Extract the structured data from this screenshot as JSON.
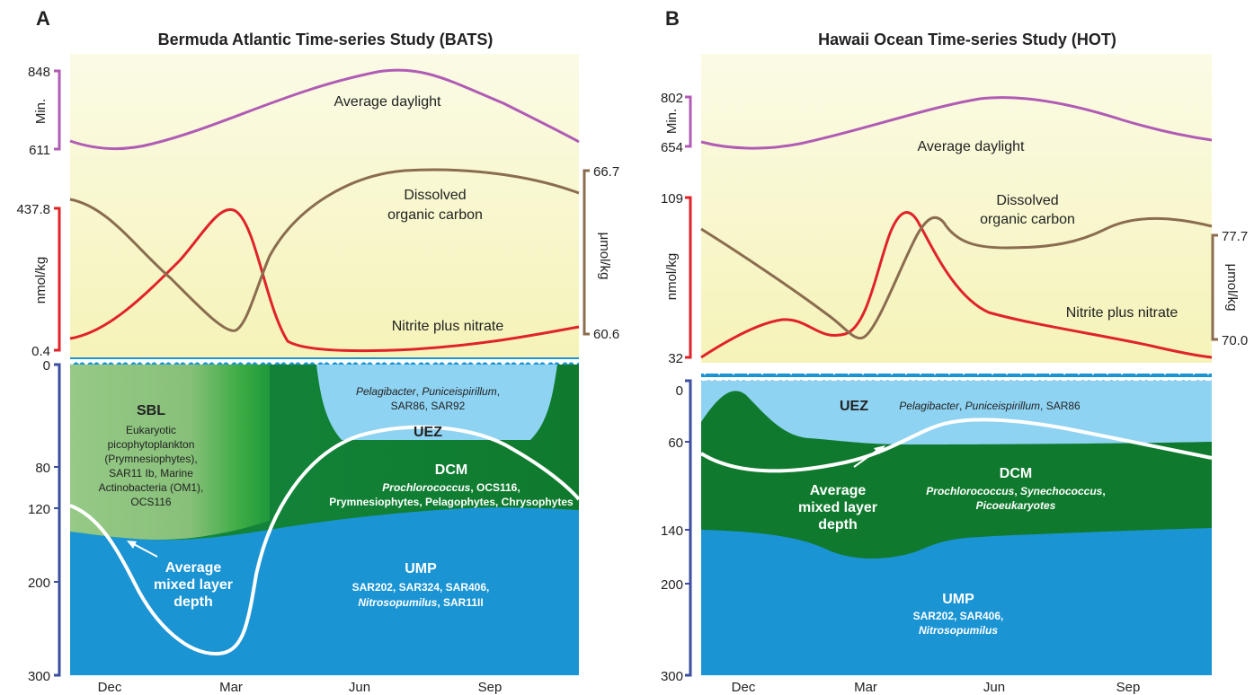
{
  "panels": [
    {
      "letter": "A",
      "title": "Bermuda Atlantic Time-series Study (BATS)",
      "daylight": {
        "label": "Average daylight",
        "axis": "Min.",
        "max": "848",
        "min": "611"
      },
      "nitrate": {
        "label": "Nitrite plus nitrate",
        "axis": "nmol/kg",
        "max": "437.8",
        "min": "0.4"
      },
      "doc": {
        "label1": "Dissolved",
        "label2": "organic carbon",
        "axis": "μmol/kg",
        "max": "66.7",
        "min": "60.6"
      },
      "depth_ticks": [
        "0",
        "80",
        "120",
        "200",
        "300"
      ],
      "months": [
        "Dec",
        "Mar",
        "Jun",
        "Sep"
      ],
      "sbl": {
        "title": "SBL",
        "lines": [
          "Eukaryotic",
          "picophytoplankton",
          "(Prymnesiophytes),",
          "SAR11 Ib, Marine",
          "Actinobacteria (OM1),",
          "OCS116"
        ]
      },
      "uez": {
        "title": "UEZ",
        "line1_a": "Pelagibacter",
        "line1_b": ", ",
        "line1_c": "Puniceispirillum",
        "line1_d": ",",
        "line2": "SAR86, SAR92"
      },
      "dcm": {
        "title": "DCM",
        "line1_a": "Prochlorococcus",
        "line1_b": ", OCS116,",
        "line2": "Prymnesiophytes, Pelagophytes, Chrysophytes"
      },
      "ump": {
        "title": "UMP",
        "line1": "SAR202, SAR324, SAR406,",
        "line2_a": "Nitrosopumilus",
        "line2_b": ", SAR11II"
      },
      "mld": {
        "line1": "Average",
        "line2": "mixed layer",
        "line3": "depth"
      }
    },
    {
      "letter": "B",
      "title": "Hawaii Ocean Time-series Study (HOT)",
      "daylight": {
        "label": "Average daylight",
        "axis": "Min.",
        "max": "802",
        "min": "654"
      },
      "nitrate": {
        "label": "Nitrite plus nitrate",
        "axis": "nmol/kg",
        "max": "109",
        "min": "32"
      },
      "doc": {
        "label1": "Dissolved",
        "label2": "organic carbon",
        "axis": "μmol/kg",
        "max": "77.7",
        "min": "70.0"
      },
      "depth_ticks": [
        "0",
        "60",
        "140",
        "200",
        "300"
      ],
      "months": [
        "Dec",
        "Mar",
        "Jun",
        "Sep"
      ],
      "uez": {
        "title": "UEZ",
        "line1_a": "Pelagibacter",
        "line1_b": ", ",
        "line1_c": "Puniceispirillum",
        "line1_d": ", SAR86"
      },
      "dcm": {
        "title": "DCM",
        "line1_a": "Prochlorococcus",
        "line1_b": ", ",
        "line1_c": "Synechococcus",
        "line1_d": ",",
        "line2": "Picoeukaryotes"
      },
      "ump": {
        "title": "UMP",
        "line1": "SAR202, SAR406,",
        "line2_a": "Nitrosopumilus"
      },
      "mld": {
        "line1": "Average",
        "line2": "mixed layer",
        "line3": "depth"
      }
    }
  ],
  "colors": {
    "daylight": "#b05cb5",
    "nitrate": "#e0232a",
    "doc": "#8b6c4f",
    "depth_axis": "#3b4ea0",
    "ocean": "#1b94d4",
    "dcm": "#0f7a2d",
    "uez": "#8fd3f2",
    "sbl": "#9ccc8a"
  }
}
